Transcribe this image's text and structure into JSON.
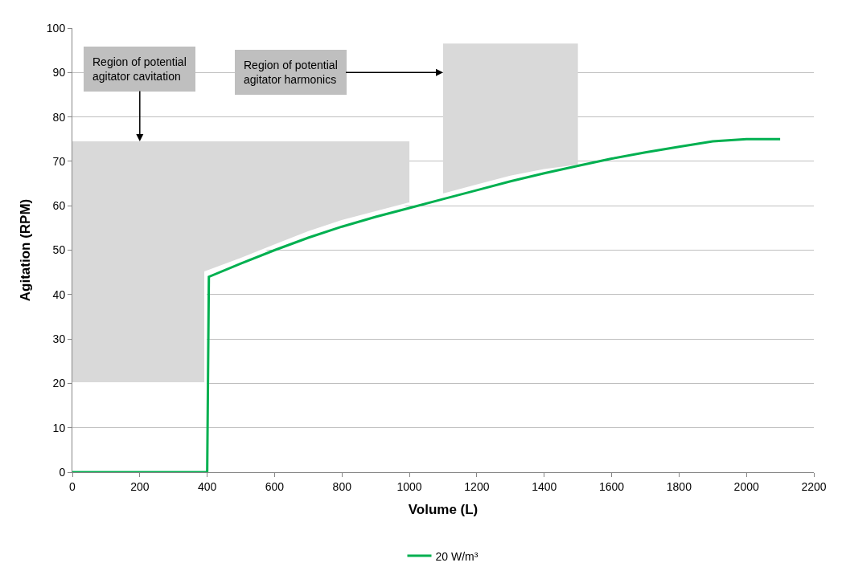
{
  "chart_data": {
    "type": "line",
    "xlabel": "Volume (L)",
    "ylabel": "Agitation (RPM)",
    "xlim": [
      0,
      2200
    ],
    "xticks": [
      0,
      200,
      400,
      600,
      800,
      1000,
      1200,
      1400,
      1600,
      1800,
      2000,
      2200
    ],
    "ylim": [
      0,
      100
    ],
    "yticks": [
      0,
      10,
      20,
      30,
      40,
      50,
      60,
      70,
      80,
      90,
      100
    ],
    "grid": "y",
    "legend": "bottom",
    "series": [
      {
        "type": "line",
        "color": "#ffffff",
        "x": [
          0,
          395,
          395,
          500,
          600,
          700,
          800,
          900,
          1000
        ],
        "values": [
          20,
          20,
          45,
          48,
          51,
          54,
          56.5,
          58.5,
          60.5
        ],
        "upper": [
          74.5,
          74.5,
          74.5,
          74.5,
          74.5,
          74.5,
          74.5,
          74.5,
          74.5
        ],
        "lower": [
          20,
          20,
          45,
          48,
          51,
          54,
          56.5,
          58.5,
          60.5
        ]
      },
      {
        "type": "line",
        "color": "#ffffff",
        "x": [
          1100,
          1200,
          1300,
          1400,
          1500
        ],
        "values": [
          62.5,
          64.5,
          66.5,
          68,
          69
        ],
        "upper": [
          96.5,
          96.5,
          96.5,
          96.5,
          96.5
        ],
        "lower": [
          62.5,
          64.5,
          66.5,
          68,
          69
        ]
      },
      {
        "name": "20 W/m³",
        "color": "#00b050",
        "x": [
          0,
          400,
          405,
          500,
          600,
          700,
          800,
          900,
          1000,
          1100,
          1200,
          1300,
          1400,
          1500,
          1600,
          1700,
          1800,
          1900,
          2000,
          2100
        ],
        "values": [
          0,
          0,
          44,
          47,
          50,
          52.8,
          55.3,
          57.5,
          59.5,
          61.5,
          63.5,
          65.5,
          67.3,
          69,
          70.6,
          72,
          73.3,
          74.5,
          75,
          75
        ]
      }
    ],
    "annotations": [
      {
        "text": "Region of potential\nagitator cavitation",
        "x": 200,
        "y": 74.5
      },
      {
        "text": "Region of potential\nagitator harmonics",
        "x": 1100,
        "y": 90
      }
    ]
  }
}
